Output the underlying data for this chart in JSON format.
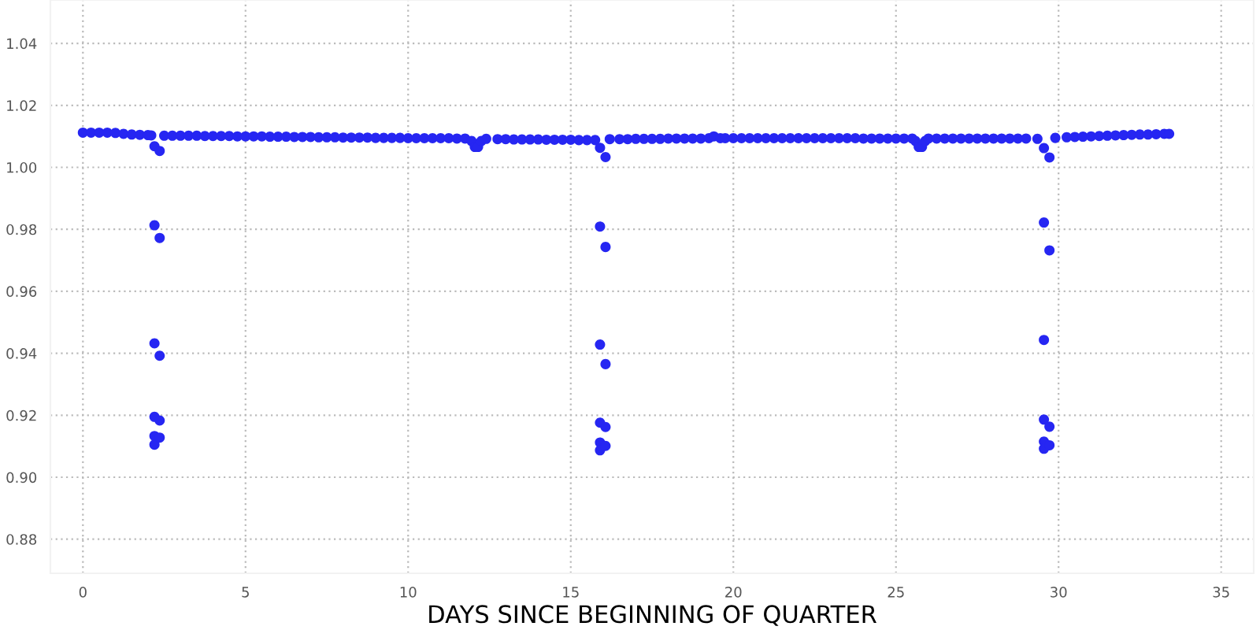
{
  "chart_data": {
    "type": "scatter",
    "xlabel": "DAYS SINCE BEGINNING OF QUARTER",
    "xlim": [
      -1,
      36
    ],
    "ylim": [
      0.869,
      1.054
    ],
    "xticks": [
      0,
      5,
      10,
      15,
      20,
      25,
      30,
      35
    ],
    "yticks": [
      {
        "value": 0.88,
        "label": "0.88"
      },
      {
        "value": 0.9,
        "label": "0.90"
      },
      {
        "value": 0.92,
        "label": "0.92"
      },
      {
        "value": 0.94,
        "label": "0.94"
      },
      {
        "value": 0.96,
        "label": "0.96"
      },
      {
        "value": 0.98,
        "label": "0.98"
      },
      {
        "value": 1.0,
        "label": "1.00"
      },
      {
        "value": 1.02,
        "label": "1.02"
      },
      {
        "value": 1.04,
        "label": "1.04"
      }
    ],
    "grid": true,
    "marker": "circle",
    "series": [
      {
        "color": "#2626f2",
        "x": [
          0,
          0.25,
          0.5,
          0.75,
          1.0,
          1.25,
          1.5,
          1.75,
          2.0,
          2.1,
          2.5,
          2.75,
          3.0,
          3.25,
          3.5,
          3.75,
          4.0,
          4.25,
          4.5,
          4.75,
          5.0,
          5.25,
          5.5,
          5.75,
          6.0,
          6.25,
          6.5,
          6.75,
          7.0,
          7.25,
          7.5,
          7.75,
          8.0,
          8.25,
          8.5,
          8.75,
          9.0,
          9.25,
          9.5,
          9.75,
          10.0,
          10.25,
          10.5,
          10.75,
          11.0,
          11.25,
          11.5,
          11.75,
          11.95,
          12.05,
          12.15,
          12.25,
          12.4,
          12.75,
          13.0,
          13.25,
          13.5,
          13.75,
          14.0,
          14.25,
          14.5,
          14.75,
          15.0,
          15.25,
          15.5,
          15.75,
          16.2,
          16.5,
          16.75,
          17.0,
          17.25,
          17.5,
          17.75,
          18.0,
          18.25,
          18.5,
          18.75,
          19.0,
          19.25,
          19.4,
          19.6,
          19.75,
          20.0,
          20.25,
          20.5,
          20.75,
          21.0,
          21.25,
          21.5,
          21.75,
          22.0,
          22.25,
          22.5,
          22.75,
          23.0,
          23.25,
          23.5,
          23.75,
          24.0,
          24.25,
          24.5,
          24.75,
          25.0,
          25.25,
          25.5,
          25.6,
          25.7,
          25.8,
          25.9,
          26.0,
          26.25,
          26.5,
          26.75,
          27.0,
          27.25,
          27.5,
          27.75,
          28.0,
          28.25,
          28.5,
          28.75,
          29.0,
          29.35,
          29.9,
          30.25,
          30.5,
          30.75,
          31.0,
          31.25,
          31.5,
          31.75,
          32.0,
          32.25,
          32.5,
          32.75,
          33.0,
          33.25,
          33.4,
          2.2,
          2.2,
          2.2,
          2.2,
          2.2,
          2.2,
          2.36,
          2.36,
          2.36,
          2.36,
          2.36,
          15.9,
          15.9,
          15.9,
          15.9,
          15.9,
          15.9,
          16.07,
          16.07,
          16.07,
          16.07,
          16.07,
          29.55,
          29.55,
          29.55,
          29.55,
          29.55,
          29.55,
          29.72,
          29.72,
          29.72,
          29.72
        ],
        "values": [
          1.0112,
          1.0112,
          1.0112,
          1.0112,
          1.0111,
          1.0108,
          1.0106,
          1.0105,
          1.0104,
          1.0103,
          1.0102,
          1.0102,
          1.0102,
          1.0102,
          1.0102,
          1.0101,
          1.0101,
          1.0101,
          1.0101,
          1.01,
          1.01,
          1.01,
          1.01,
          1.0099,
          1.0099,
          1.0099,
          1.0098,
          1.0098,
          1.0098,
          1.0097,
          1.0097,
          1.0097,
          1.0096,
          1.0096,
          1.0096,
          1.0096,
          1.0095,
          1.0095,
          1.0095,
          1.0095,
          1.0094,
          1.0094,
          1.0094,
          1.0094,
          1.0094,
          1.0094,
          1.0093,
          1.0093,
          1.0085,
          1.0066,
          1.0066,
          1.0085,
          1.0092,
          1.0091,
          1.0091,
          1.009,
          1.009,
          1.009,
          1.009,
          1.0089,
          1.0089,
          1.0089,
          1.0089,
          1.0088,
          1.0088,
          1.0088,
          1.0091,
          1.0091,
          1.0091,
          1.0092,
          1.0092,
          1.0092,
          1.0092,
          1.0093,
          1.0093,
          1.0093,
          1.0093,
          1.0093,
          1.0094,
          1.01,
          1.0094,
          1.0094,
          1.0094,
          1.0094,
          1.0094,
          1.0094,
          1.0094,
          1.0094,
          1.0094,
          1.0094,
          1.0094,
          1.0094,
          1.0094,
          1.0094,
          1.0094,
          1.0094,
          1.0094,
          1.0094,
          1.0093,
          1.0093,
          1.0093,
          1.0093,
          1.0093,
          1.0093,
          1.0093,
          1.0085,
          1.0066,
          1.0066,
          1.0085,
          1.0093,
          1.0093,
          1.0093,
          1.0093,
          1.0093,
          1.0093,
          1.0093,
          1.0093,
          1.0093,
          1.0093,
          1.0093,
          1.0093,
          1.0093,
          1.0092,
          1.0095,
          1.0097,
          1.0098,
          1.0099,
          1.01,
          1.0101,
          1.0102,
          1.0103,
          1.0104,
          1.0105,
          1.0106,
          1.0106,
          1.0107,
          1.0108,
          1.0108,
          1.0068,
          0.9813,
          0.9432,
          0.9195,
          0.9133,
          0.9105,
          1.0053,
          0.9772,
          0.9392,
          0.9183,
          0.9128,
          1.0063,
          0.9809,
          0.9428,
          0.9176,
          0.9112,
          0.9087,
          1.0033,
          0.9743,
          0.9365,
          0.9162,
          0.9101,
          1.0062,
          0.9822,
          0.9443,
          0.9186,
          0.9115,
          0.9092,
          1.0032,
          0.9732,
          0.9163,
          0.9103
        ]
      }
    ]
  }
}
